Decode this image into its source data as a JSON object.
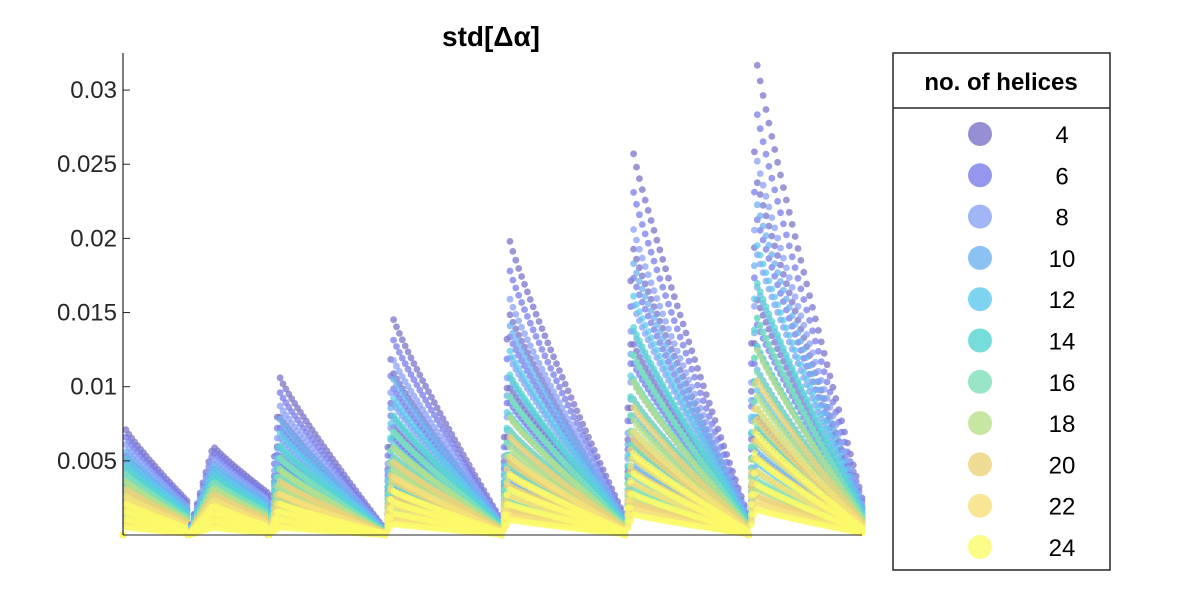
{
  "chart_data": {
    "type": "scatter",
    "title": "std[Δα]",
    "xlabel": "",
    "ylabel": "",
    "ylim": [
      0,
      0.0325
    ],
    "y_ticks": [
      0.005,
      0.01,
      0.015,
      0.02,
      0.025,
      0.03
    ],
    "y_tick_labels": [
      "0.005",
      "0.01",
      "0.015",
      "0.02",
      "0.025",
      "0.03"
    ],
    "x_ticks_shown": false,
    "grid": false,
    "legend": {
      "title": "no. of helices",
      "placement": "right",
      "entries": [
        "4",
        "6",
        "8",
        "10",
        "12",
        "14",
        "16",
        "18",
        "20",
        "22",
        "24"
      ]
    },
    "series_colors": [
      "#7b74c9",
      "#7a7de8",
      "#8aa2f5",
      "#6fb1f0",
      "#5ec9ec",
      "#55d5d2",
      "#7ee0b8",
      "#b8e08a",
      "#ecd27a",
      "#f6e07a",
      "#fbfb6a"
    ],
    "groups": [
      {
        "x_start": 0,
        "x_end": 45,
        "peak_x": 2,
        "peak_values": [
          0.0071,
          0.0066,
          0.0061,
          0.0056,
          0.0051,
          0.0046,
          0.0041,
          0.0036,
          0.0031,
          0.0026,
          0.0021
        ],
        "end_value": 0.0022
      },
      {
        "x_start": 45,
        "x_end": 100,
        "peak_x": 17,
        "peak_values": [
          0.006,
          0.0056,
          0.0052,
          0.0048,
          0.0044,
          0.004,
          0.0036,
          0.0032,
          0.0028,
          0.0024,
          0.002
        ],
        "end_value": 0.0028
      },
      {
        "x_start": 100,
        "x_end": 180,
        "peak_x": 8,
        "peak_values": [
          0.0106,
          0.0096,
          0.0087,
          0.0078,
          0.0069,
          0.006,
          0.0052,
          0.0044,
          0.0036,
          0.0028,
          0.0021
        ],
        "end_value": 0.0004
      },
      {
        "x_start": 180,
        "x_end": 260,
        "peak_x": 5,
        "peak_values": [
          0.0148,
          0.0134,
          0.012,
          0.0107,
          0.0094,
          0.0082,
          0.0071,
          0.006,
          0.005,
          0.004,
          0.003
        ],
        "end_value": 0.001
      },
      {
        "x_start": 260,
        "x_end": 345,
        "peak_x": 6,
        "peak_values": [
          0.0198,
          0.0178,
          0.0159,
          0.0141,
          0.0124,
          0.0108,
          0.0093,
          0.0079,
          0.0066,
          0.0053,
          0.0041
        ],
        "end_value": 0.0012
      },
      {
        "x_start": 345,
        "x_end": 430,
        "peak_x": 6,
        "peak_values": [
          0.0257,
          0.0231,
          0.0206,
          0.0183,
          0.0161,
          0.014,
          0.0121,
          0.0103,
          0.0086,
          0.007,
          0.0055
        ],
        "end_value": 0.0012
      },
      {
        "x_start": 430,
        "x_end": 508,
        "peak_x": 5,
        "peak_values": [
          0.0323,
          0.0289,
          0.0257,
          0.0227,
          0.0199,
          0.0173,
          0.0149,
          0.0127,
          0.0106,
          0.0087,
          0.0069
        ],
        "end_value": 0.0025
      }
    ]
  }
}
